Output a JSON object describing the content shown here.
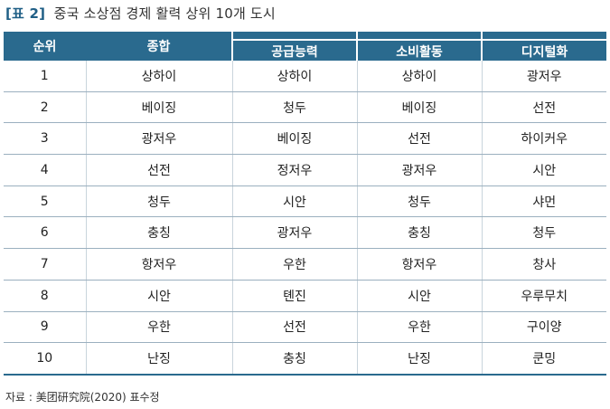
{
  "title": {
    "bracket": "[표 2]",
    "text": "중국 소상점 경제 활력 상위 10개 도시"
  },
  "table": {
    "headers": [
      "순위",
      "종합",
      "공급능력",
      "소비활동",
      "디지털화"
    ],
    "rows": [
      [
        "1",
        "상하이",
        "상하이",
        "상하이",
        "광저우"
      ],
      [
        "2",
        "베이징",
        "청두",
        "베이징",
        "선전"
      ],
      [
        "3",
        "광저우",
        "베이징",
        "선전",
        "하이커우"
      ],
      [
        "4",
        "선전",
        "정저우",
        "광저우",
        "시안"
      ],
      [
        "5",
        "청두",
        "시안",
        "청두",
        "샤먼"
      ],
      [
        "6",
        "충칭",
        "광저우",
        "충칭",
        "청두"
      ],
      [
        "7",
        "항저우",
        "우한",
        "항저우",
        "창사"
      ],
      [
        "8",
        "시안",
        "톈진",
        "시안",
        "우루무치"
      ],
      [
        "9",
        "우한",
        "선전",
        "우한",
        "구이양"
      ],
      [
        "10",
        "난징",
        "충칭",
        "난징",
        "쿤밍"
      ]
    ]
  },
  "source": "자료 : 美团研究院(2020) 표수정",
  "colors": {
    "header_bg": "#2a6a8e",
    "title_accent": "#1f5f86"
  }
}
